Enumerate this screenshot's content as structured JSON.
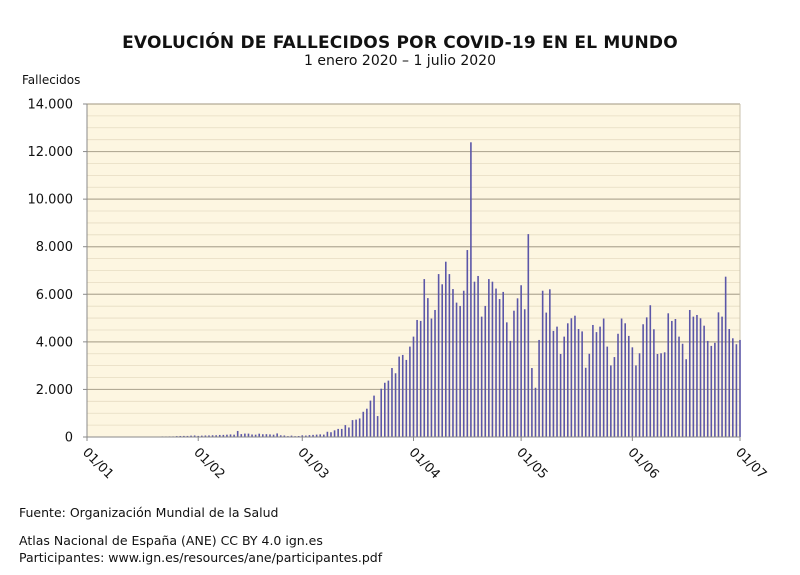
{
  "chart_data": {
    "type": "bar",
    "title": "EVOLUCIÓN DE FALLECIDOS POR COVID-19 EN EL MUNDO",
    "subtitle": "1 enero 2020 – 1 julio 2020",
    "ylabel": "Fallecidos",
    "xlabel": "",
    "ylim": [
      0,
      14000
    ],
    "y_ticks": [
      "0",
      "2.000",
      "4.000",
      "6.000",
      "8.000",
      "10.000",
      "12.000",
      "14.000"
    ],
    "y_tick_values": [
      0,
      2000,
      4000,
      6000,
      8000,
      10000,
      12000,
      14000
    ],
    "x_ticks": [
      "01/01",
      "01/02",
      "01/03",
      "01/04",
      "01/05",
      "01/06",
      "01/07"
    ],
    "grid": true,
    "bar_color": "#5b56a8",
    "plot_background": "#fdf6e1",
    "x": [
      "01/01",
      "02/01",
      "03/01",
      "04/01",
      "05/01",
      "06/01",
      "07/01",
      "08/01",
      "09/01",
      "10/01",
      "11/01",
      "12/01",
      "13/01",
      "14/01",
      "15/01",
      "16/01",
      "17/01",
      "18/01",
      "19/01",
      "20/01",
      "21/01",
      "22/01",
      "23/01",
      "24/01",
      "25/01",
      "26/01",
      "27/01",
      "28/01",
      "29/01",
      "30/01",
      "31/01",
      "01/02",
      "02/02",
      "03/02",
      "04/02",
      "05/02",
      "06/02",
      "07/02",
      "08/02",
      "09/02",
      "10/02",
      "11/02",
      "12/02",
      "13/02",
      "14/02",
      "15/02",
      "16/02",
      "17/02",
      "18/02",
      "19/02",
      "20/02",
      "21/02",
      "22/02",
      "23/02",
      "24/02",
      "25/02",
      "26/02",
      "27/02",
      "28/02",
      "29/02",
      "01/03",
      "02/03",
      "03/03",
      "04/03",
      "05/03",
      "06/03",
      "07/03",
      "08/03",
      "09/03",
      "10/03",
      "11/03",
      "12/03",
      "13/03",
      "14/03",
      "15/03",
      "16/03",
      "17/03",
      "18/03",
      "19/03",
      "20/03",
      "21/03",
      "22/03",
      "23/03",
      "24/03",
      "25/03",
      "26/03",
      "27/03",
      "28/03",
      "29/03",
      "30/03",
      "31/03",
      "01/04",
      "02/04",
      "03/04",
      "04/04",
      "05/04",
      "06/04",
      "07/04",
      "08/04",
      "09/04",
      "10/04",
      "11/04",
      "12/04",
      "13/04",
      "14/04",
      "15/04",
      "16/04",
      "17/04",
      "18/04",
      "19/04",
      "20/04",
      "21/04",
      "22/04",
      "23/04",
      "24/04",
      "25/04",
      "26/04",
      "27/04",
      "28/04",
      "29/04",
      "30/04",
      "01/05",
      "02/05",
      "03/05",
      "04/05",
      "05/05",
      "06/05",
      "07/05",
      "08/05",
      "09/05",
      "10/05",
      "11/05",
      "12/05",
      "13/05",
      "14/05",
      "15/05",
      "16/05",
      "17/05",
      "18/05",
      "19/05",
      "20/05",
      "21/05",
      "22/05",
      "23/05",
      "24/05",
      "25/05",
      "26/05",
      "27/05",
      "28/05",
      "29/05",
      "30/05",
      "31/05",
      "01/06",
      "02/06",
      "03/06",
      "04/06",
      "05/06",
      "06/06",
      "07/06",
      "08/06",
      "09/06",
      "10/06",
      "11/06",
      "12/06",
      "13/06",
      "14/06",
      "15/06",
      "16/06",
      "17/06",
      "18/06",
      "19/06",
      "20/06",
      "21/06",
      "22/06",
      "23/06",
      "24/06",
      "25/06",
      "26/06",
      "27/06",
      "28/06",
      "29/06",
      "30/06",
      "01/07"
    ],
    "values": [
      0,
      0,
      0,
      0,
      0,
      0,
      0,
      0,
      0,
      0,
      1,
      0,
      0,
      0,
      1,
      2,
      3,
      6,
      9,
      15,
      17,
      25,
      24,
      26,
      26,
      38,
      43,
      46,
      45,
      57,
      64,
      46,
      57,
      64,
      66,
      73,
      73,
      86,
      89,
      97,
      108,
      97,
      254,
      121,
      143,
      142,
      106,
      98,
      139,
      115,
      118,
      109,
      97,
      150,
      71,
      64,
      37,
      58,
      35,
      42,
      70,
      60,
      80,
      90,
      100,
      110,
      100,
      220,
      200,
      280,
      340,
      340,
      500,
      400,
      710,
      730,
      780,
      1060,
      1190,
      1530,
      1740,
      880,
      2030,
      2280,
      2370,
      2900,
      2680,
      3380,
      3450,
      3240,
      3800,
      4220,
      4920,
      4880,
      6640,
      5840,
      4980,
      5340,
      6850,
      6420,
      7370,
      6850,
      6220,
      5650,
      5510,
      6150,
      7860,
      12390,
      6530,
      6770,
      5060,
      5510,
      6640,
      6530,
      6240,
      5800,
      6100,
      4820,
      4040,
      5310,
      5830,
      6380,
      5370,
      8530,
      2900,
      2070,
      4080,
      6150,
      5230,
      6210,
      4460,
      4640,
      3490,
      4220,
      4780,
      4990,
      5100,
      4540,
      4440,
      2910,
      3500,
      4710,
      4410,
      4640,
      4980,
      3800,
      3010,
      3360,
      4340,
      4980,
      4780,
      4250,
      3770,
      3010,
      3520,
      4740,
      5030,
      5540,
      4530,
      3490,
      3520,
      3560,
      5200,
      4880,
      4960,
      4220,
      3920,
      3270,
      5340,
      5060,
      5130,
      4990,
      4680,
      4040,
      3830,
      3960,
      5240,
      5060,
      6740,
      4540,
      4150,
      3900,
      4080
    ]
  },
  "footer": {
    "source": "Fuente: Organización Mundial de la Salud",
    "license": "Atlas Nacional de España (ANE) CC BY 4.0 ign.es",
    "participants": "Participantes: www.ign.es/resources/ane/participantes.pdf"
  }
}
